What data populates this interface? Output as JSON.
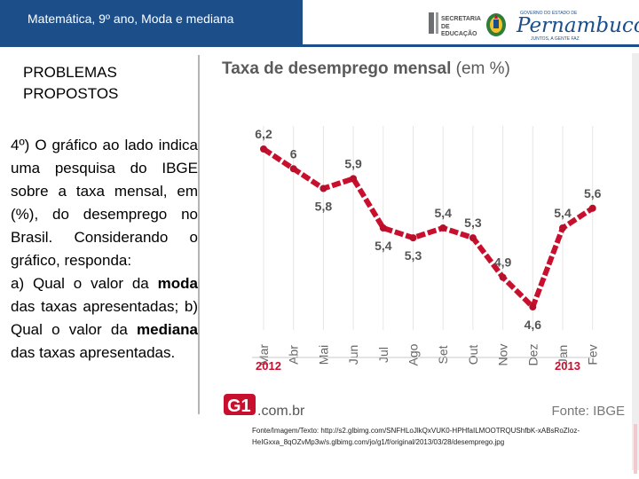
{
  "header": {
    "title": "Matemática, 9º ano, Moda e mediana",
    "logo_sec_line1": "SECRETARIA",
    "logo_sec_line2": "DE EDUCAÇÃO",
    "logo_pe_small": "GOVERNO DO ESTADO DE",
    "logo_pe_name": "Pernambuco",
    "logo_pe_sub": "JUNTOS, A GENTE FAZ"
  },
  "sidebar": {
    "heading": "PROBLEMAS PROPOSTOS",
    "q_intro": "4º) O gráfico ao lado indica uma pesquisa do IBGE sobre a taxa mensal, em (%), do desemprego no Brasil. Considerando o gráfico, responda:\na) Qual o valor da ",
    "q_bold1": "moda",
    "q_mid": " das taxas apresentadas; b) Qual o valor da ",
    "q_bold2": "mediana",
    "q_end": " das taxas apresentadas."
  },
  "chart_data": {
    "type": "line",
    "title": "Taxa de desemprego mensal",
    "title_unit": "(em %)",
    "categories": [
      "Mar",
      "Abr",
      "Mai",
      "Jun",
      "Jul",
      "Ago",
      "Set",
      "Out",
      "Nov",
      "Dez",
      "Jan",
      "Fev"
    ],
    "values": [
      6.2,
      6.0,
      5.8,
      5.9,
      5.4,
      5.3,
      5.4,
      5.3,
      4.9,
      4.6,
      5.4,
      5.6
    ],
    "labels": [
      "6,2",
      "6",
      "5,8",
      "5,9",
      "5,4",
      "5,3",
      "5,4",
      "5,3",
      "4,9",
      "4,6",
      "5,4",
      "5,6"
    ],
    "year_labels": [
      {
        "text": "2012",
        "first_index": 0,
        "last_index": 9
      },
      {
        "text": "2013",
        "first_index": 10,
        "last_index": 11
      }
    ],
    "line_color": "#c8102e",
    "marker_color": "#b8102a",
    "grid": true,
    "brand": ".com.br",
    "source": "Fonte: IBGE"
  },
  "footnote": "Fonte/Imagem/Texto: http://s2.glbimg.com/SNFHLoJlkQxVUK0-HPHfaILMOOTRQUShfbK-xABsRoZIoz-HeIGxxa_8qOZvMp3w/s.glbimg.com/jo/g1/f/original/2013/03/28/desemprego.jpg"
}
